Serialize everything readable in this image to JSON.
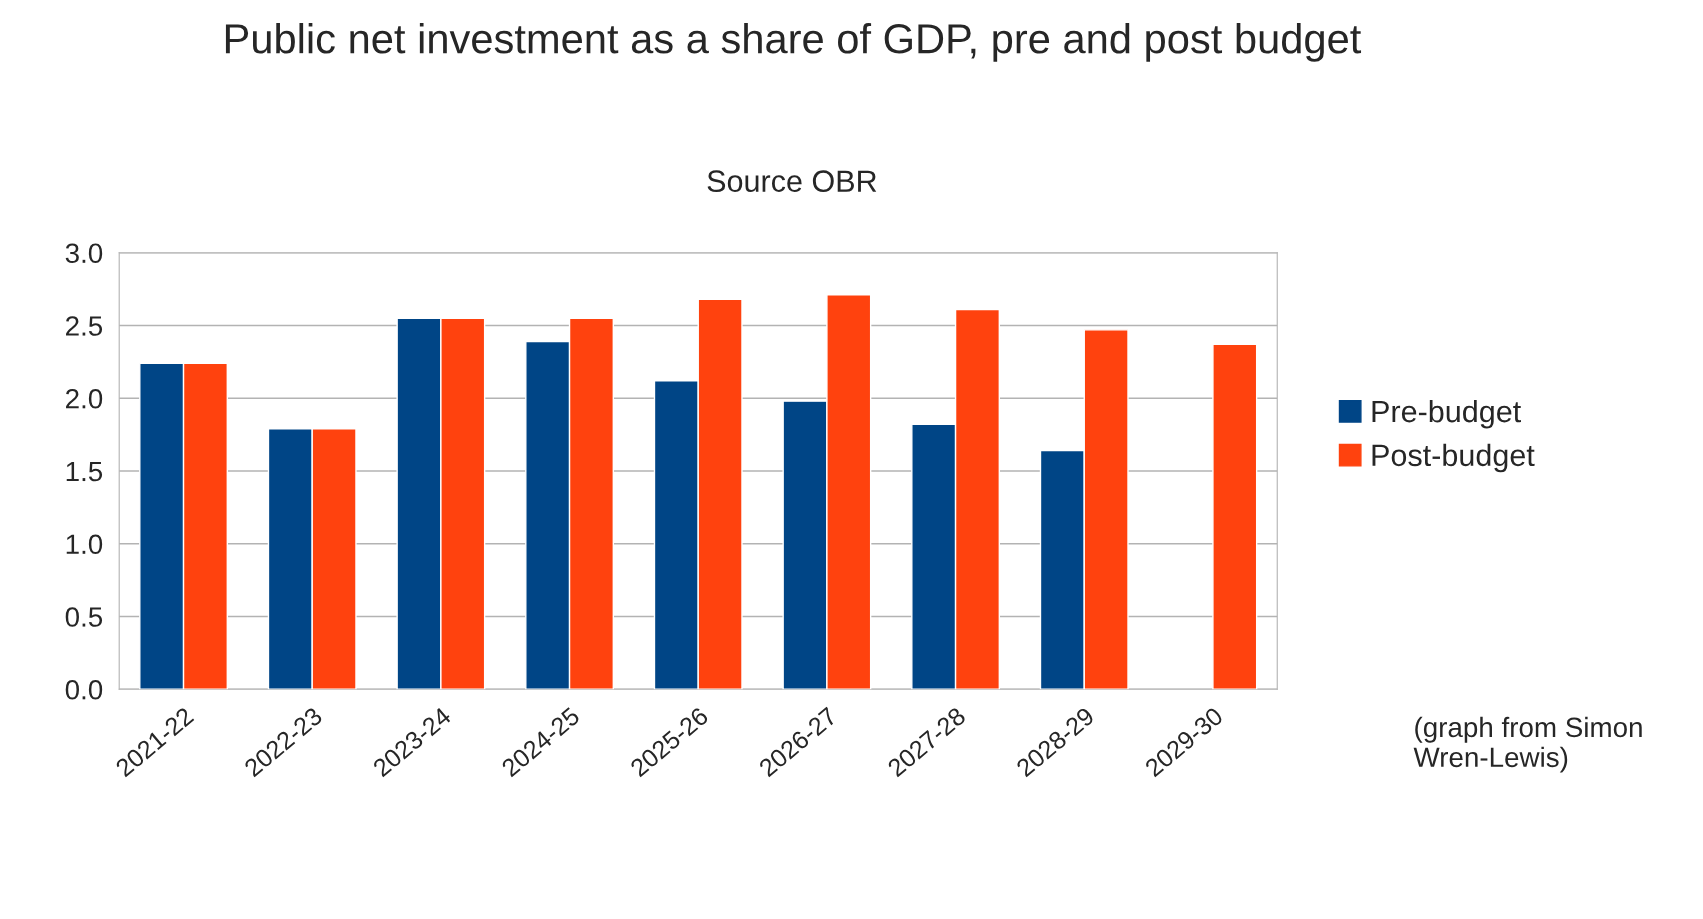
{
  "chart_data": {
    "type": "bar",
    "title": "Public net investment as a share of GDP, pre and post budget",
    "subtitle": "Source OBR",
    "categories": [
      "2021-22",
      "2022-23",
      "2023-24",
      "2024-25",
      "2025-26",
      "2026-27",
      "2027-28",
      "2028-29",
      "2029-30"
    ],
    "series": [
      {
        "name": "Pre-budget",
        "color": "#004586",
        "values": [
          2.24,
          1.79,
          2.55,
          2.39,
          2.12,
          1.98,
          1.82,
          1.64,
          null
        ]
      },
      {
        "name": "Post-budget",
        "color": "#ff420e",
        "values": [
          2.24,
          1.79,
          2.55,
          2.55,
          2.68,
          2.71,
          2.61,
          2.47,
          2.37
        ]
      }
    ],
    "ylim": [
      0,
      3
    ],
    "yticks": [
      {
        "value": 0,
        "label": "0.0"
      },
      {
        "value": 0.5,
        "label": "0.5"
      },
      {
        "value": 1,
        "label": "1.0"
      },
      {
        "value": 1.5,
        "label": "1.5"
      },
      {
        "value": 2,
        "label": "2.0"
      },
      {
        "value": 2.5,
        "label": "2.5"
      },
      {
        "value": 3,
        "label": "3.0"
      }
    ],
    "grid": "y",
    "legend": "right",
    "annotations": [
      "(graph from Simon Wren-Lewis)"
    ]
  }
}
